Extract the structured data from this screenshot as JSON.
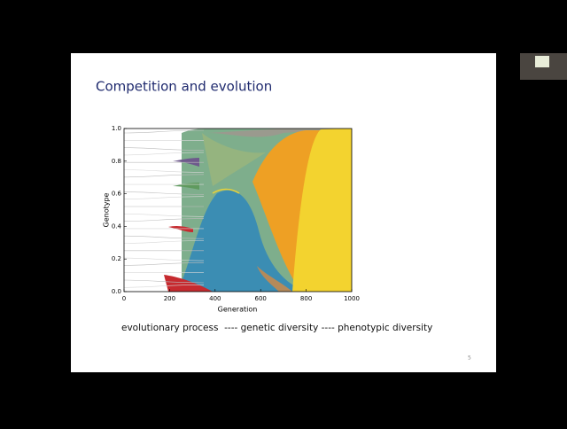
{
  "slide": {
    "title": "Competition and evolution",
    "caption": "evolutionary process  ---- genetic diversity ---- phenotypic diversity",
    "page_number": "5"
  },
  "chart_data": {
    "type": "muller",
    "xlabel": "Generation",
    "ylabel": "Genotype",
    "xlim": [
      0,
      1000
    ],
    "ylim": [
      0,
      1
    ],
    "xticks": [
      0,
      200,
      400,
      600,
      800,
      1000
    ],
    "yticks": [
      {
        "value": 0,
        "label": "0.0"
      },
      0.2,
      0.4,
      0.6,
      0.8,
      {
        "value": 1,
        "label": "1.0"
      }
    ]
  }
}
